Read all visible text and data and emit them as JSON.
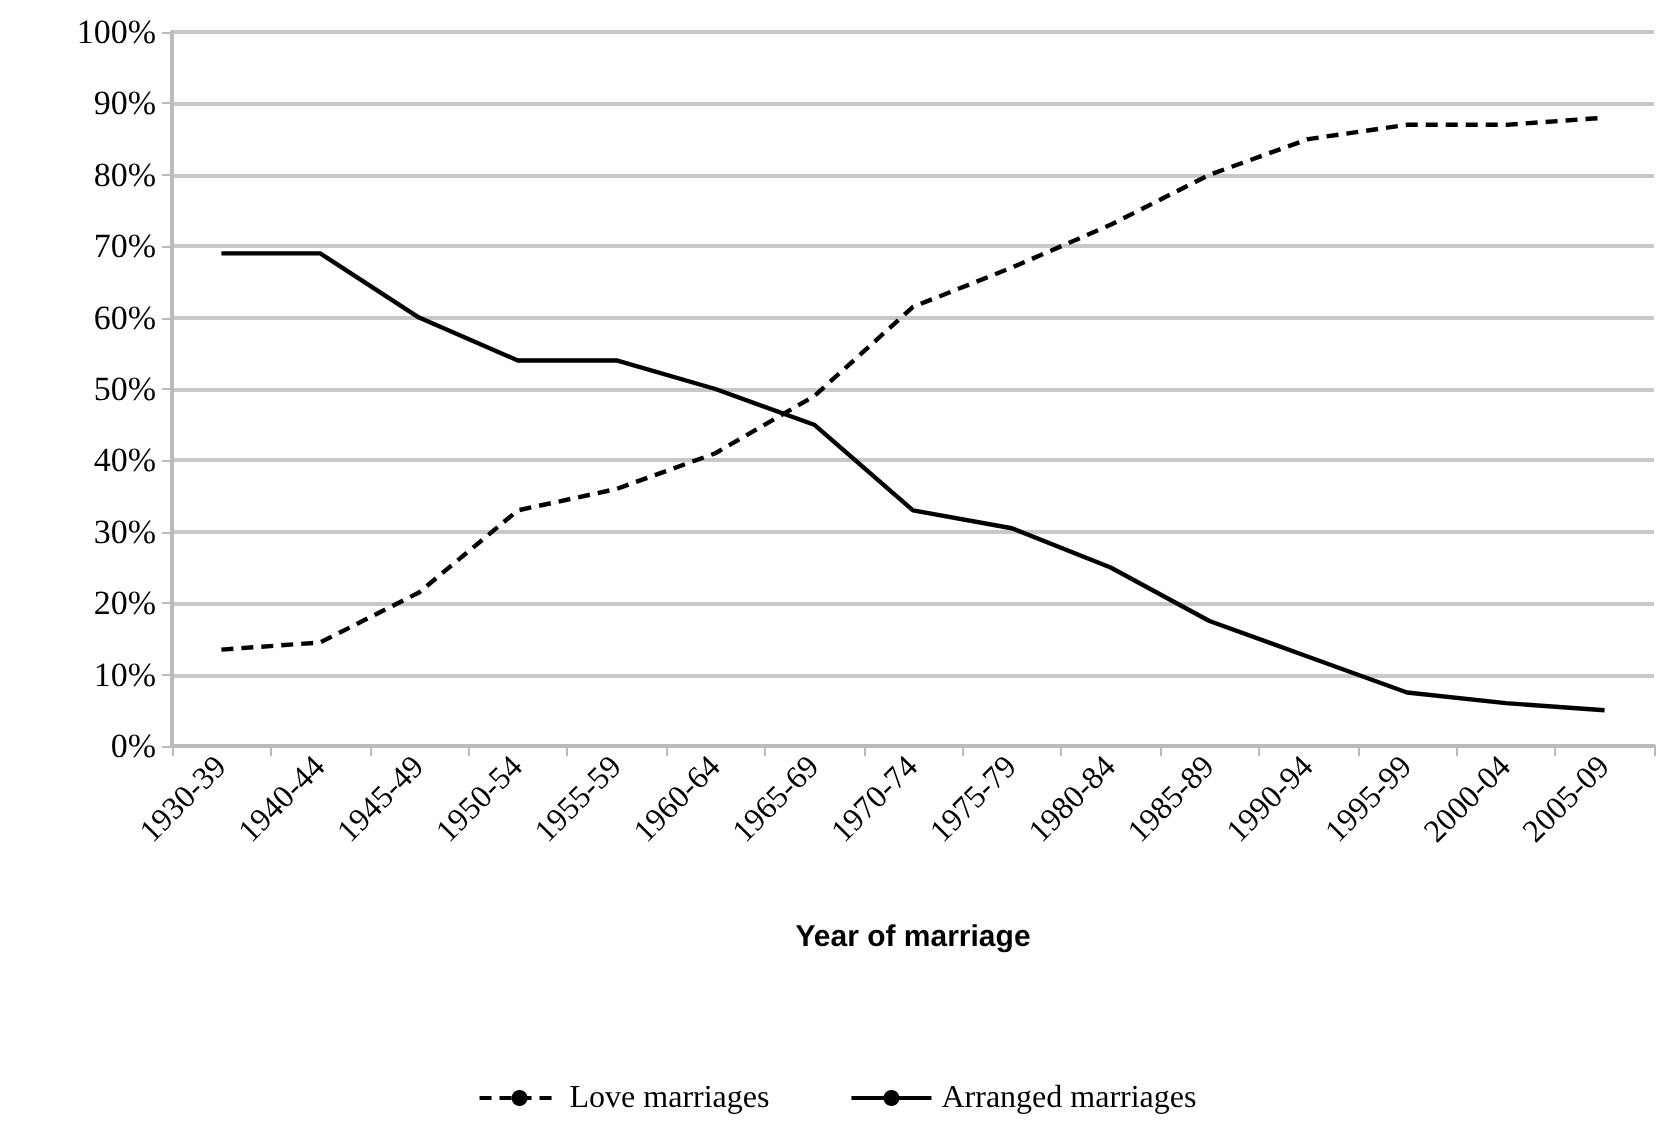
{
  "chart_data": {
    "type": "line",
    "xlabel": "Year of marriage",
    "categories": [
      "1930-39",
      "1940-44",
      "1945-49",
      "1950-54",
      "1955-59",
      "1960-64",
      "1965-69",
      "1970-74",
      "1975-79",
      "1980-84",
      "1985-89",
      "1990-94",
      "1995-99",
      "2000-04",
      "2005-09"
    ],
    "series": [
      {
        "name": "Love marriages",
        "color": "#000000",
        "line_style": "dashed",
        "values": [
          13.5,
          14.5,
          21.5,
          33,
          36,
          41,
          49,
          61.5,
          67,
          73,
          80,
          85,
          87,
          87,
          88
        ]
      },
      {
        "name": "Arranged marriages",
        "color": "#000000",
        "line_style": "solid",
        "values": [
          69,
          69,
          60,
          54,
          54,
          50,
          45,
          33,
          30.5,
          25,
          17.5,
          12.5,
          7.5,
          6,
          5
        ]
      }
    ],
    "ylim": [
      0,
      100
    ],
    "yticks": [
      {
        "value": 0,
        "label": "0%"
      },
      {
        "value": 10,
        "label": "10%"
      },
      {
        "value": 20,
        "label": "20%"
      },
      {
        "value": 30,
        "label": "30%"
      },
      {
        "value": 40,
        "label": "40%"
      },
      {
        "value": 50,
        "label": "50%"
      },
      {
        "value": 60,
        "label": "60%"
      },
      {
        "value": 70,
        "label": "70%"
      },
      {
        "value": 80,
        "label": "80%"
      },
      {
        "value": 90,
        "label": "90%"
      },
      {
        "value": 100,
        "label": "100%"
      }
    ],
    "grid": "y",
    "legend": "bottom",
    "marker": "none"
  }
}
